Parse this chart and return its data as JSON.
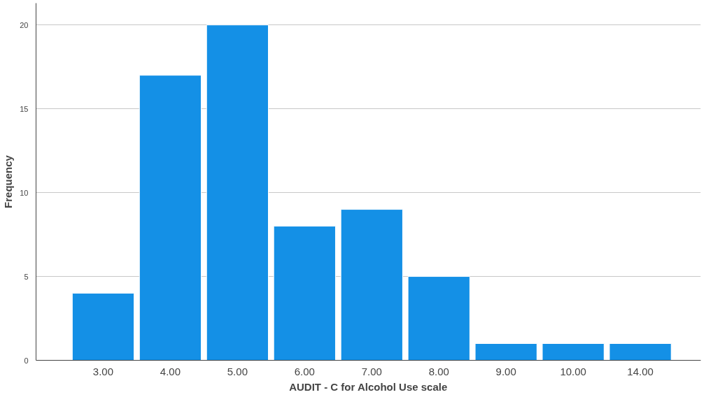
{
  "chart_data": {
    "type": "bar",
    "xlabel": "AUDIT - C for Alcohol Use scale",
    "ylabel": "Frequency",
    "categories": [
      "3.00",
      "4.00",
      "5.00",
      "6.00",
      "7.00",
      "8.00",
      "9.00",
      "10.00",
      "14.00"
    ],
    "values": [
      4,
      17,
      20,
      8,
      9,
      5,
      1,
      1,
      1
    ],
    "color": "#1490e6",
    "ylim": [
      0,
      21.3
    ],
    "yticks": [
      0,
      5,
      10,
      15,
      20
    ],
    "grid": "y"
  }
}
